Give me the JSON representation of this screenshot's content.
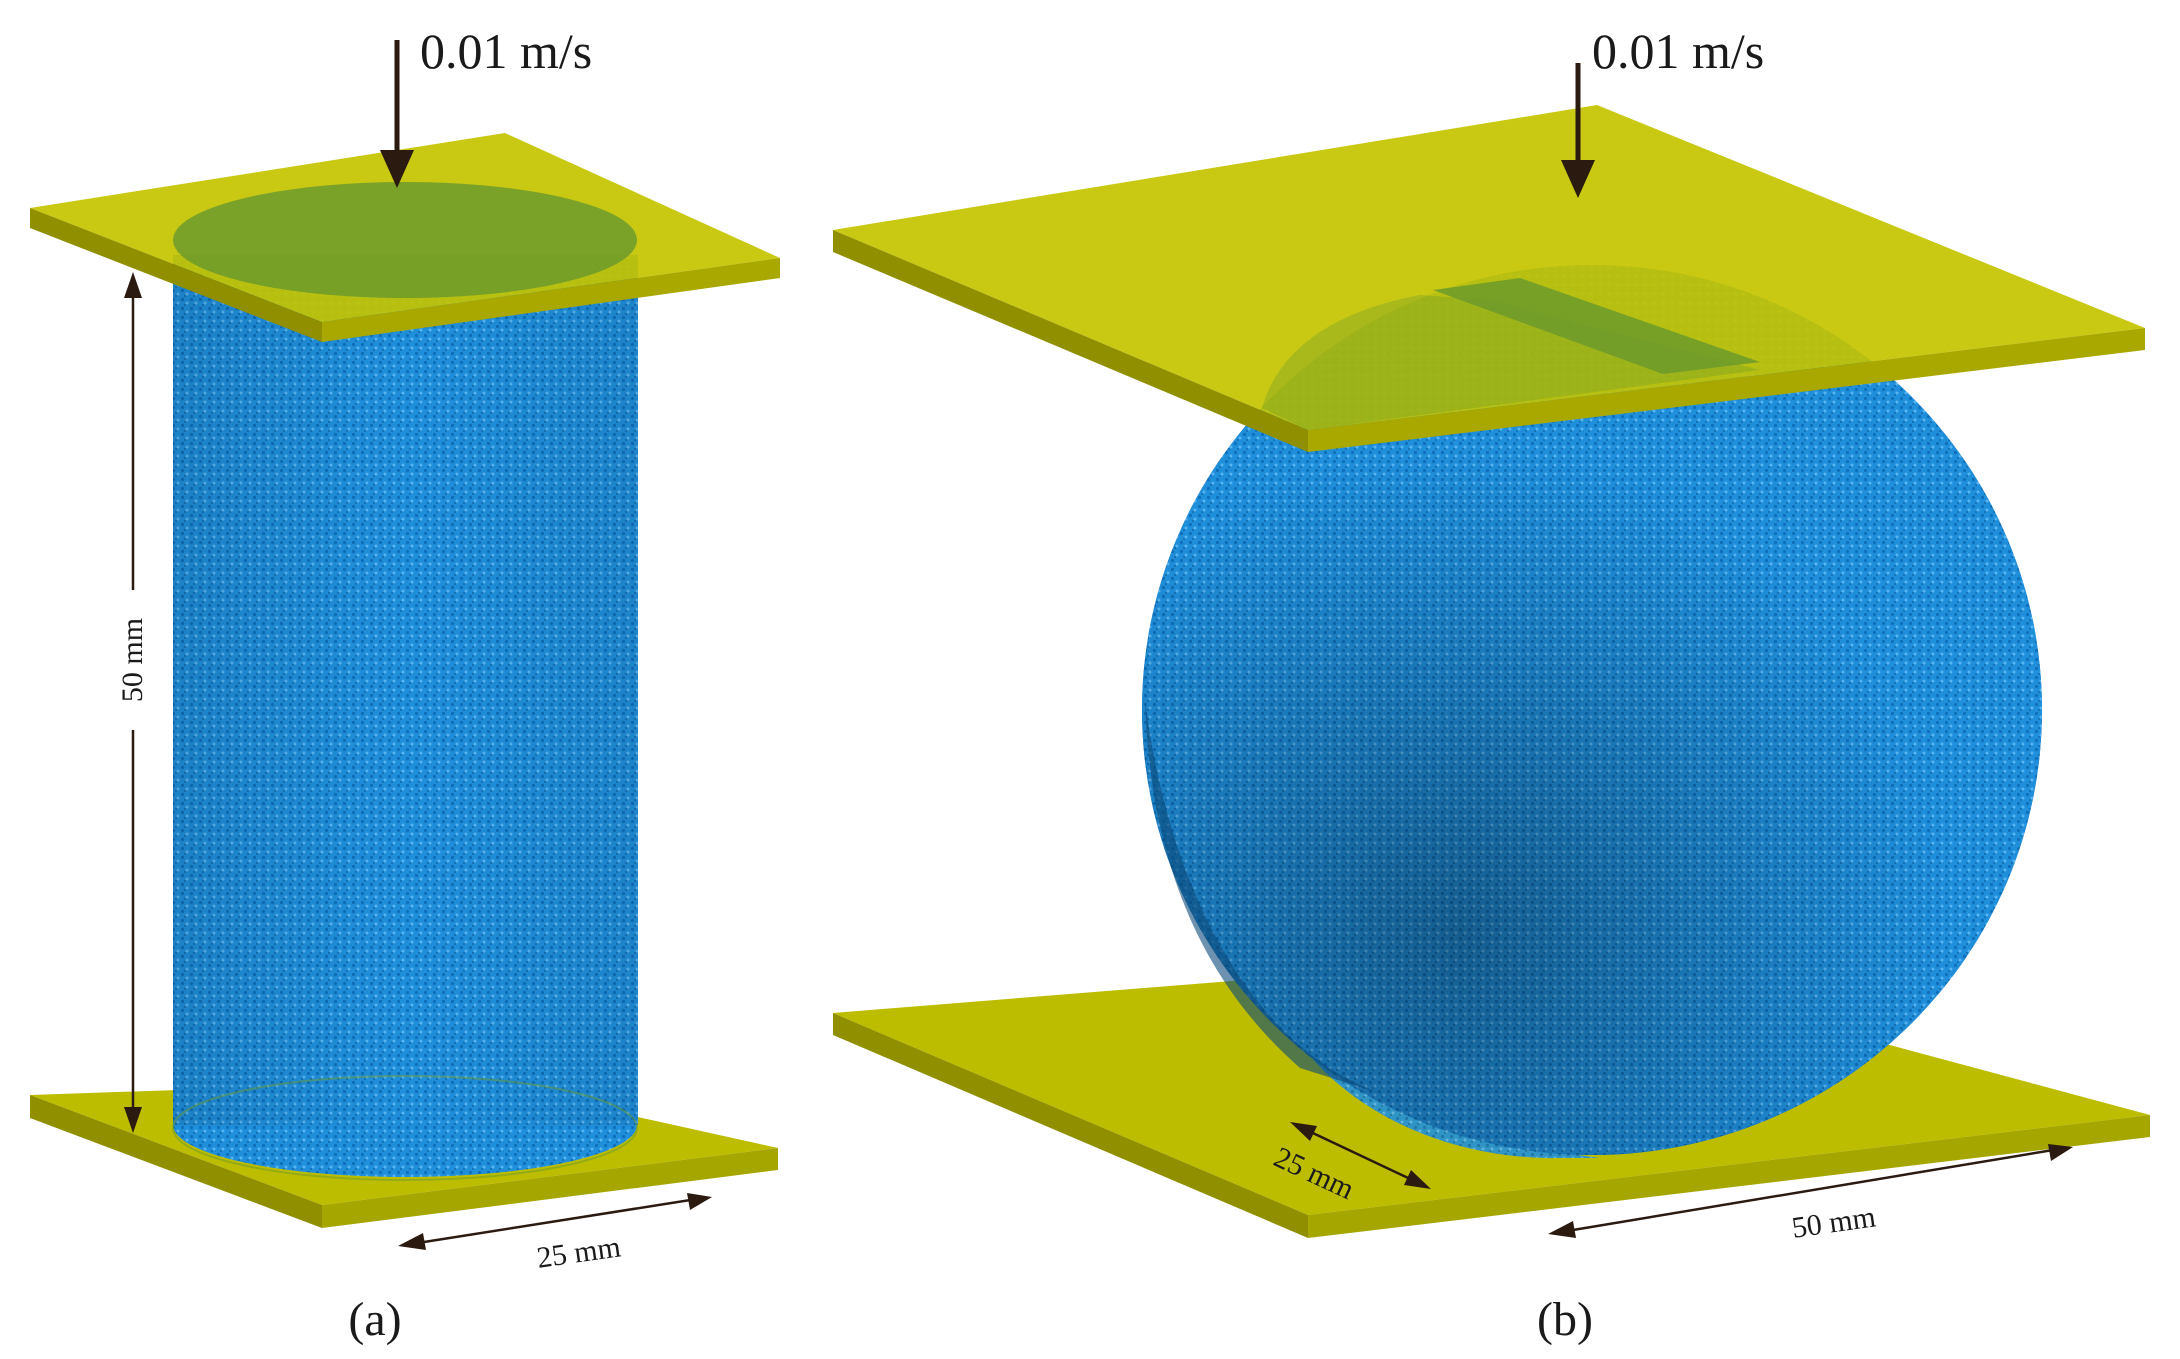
{
  "panel_a": {
    "velocity_label": "0.01 m/s",
    "height_label": "50 mm",
    "diameter_label": "25 mm",
    "caption": "(a)"
  },
  "panel_b": {
    "velocity_label": "0.01 m/s",
    "thickness_label": "25 mm",
    "diameter_label": "50 mm",
    "caption": "(b)"
  },
  "colors": {
    "plate": "#c8c800",
    "plate_edge": "#8a8a00",
    "specimen": "#1f8fdc",
    "contact_patch": "#6c9a2c",
    "arrow": "#2a1a10"
  }
}
